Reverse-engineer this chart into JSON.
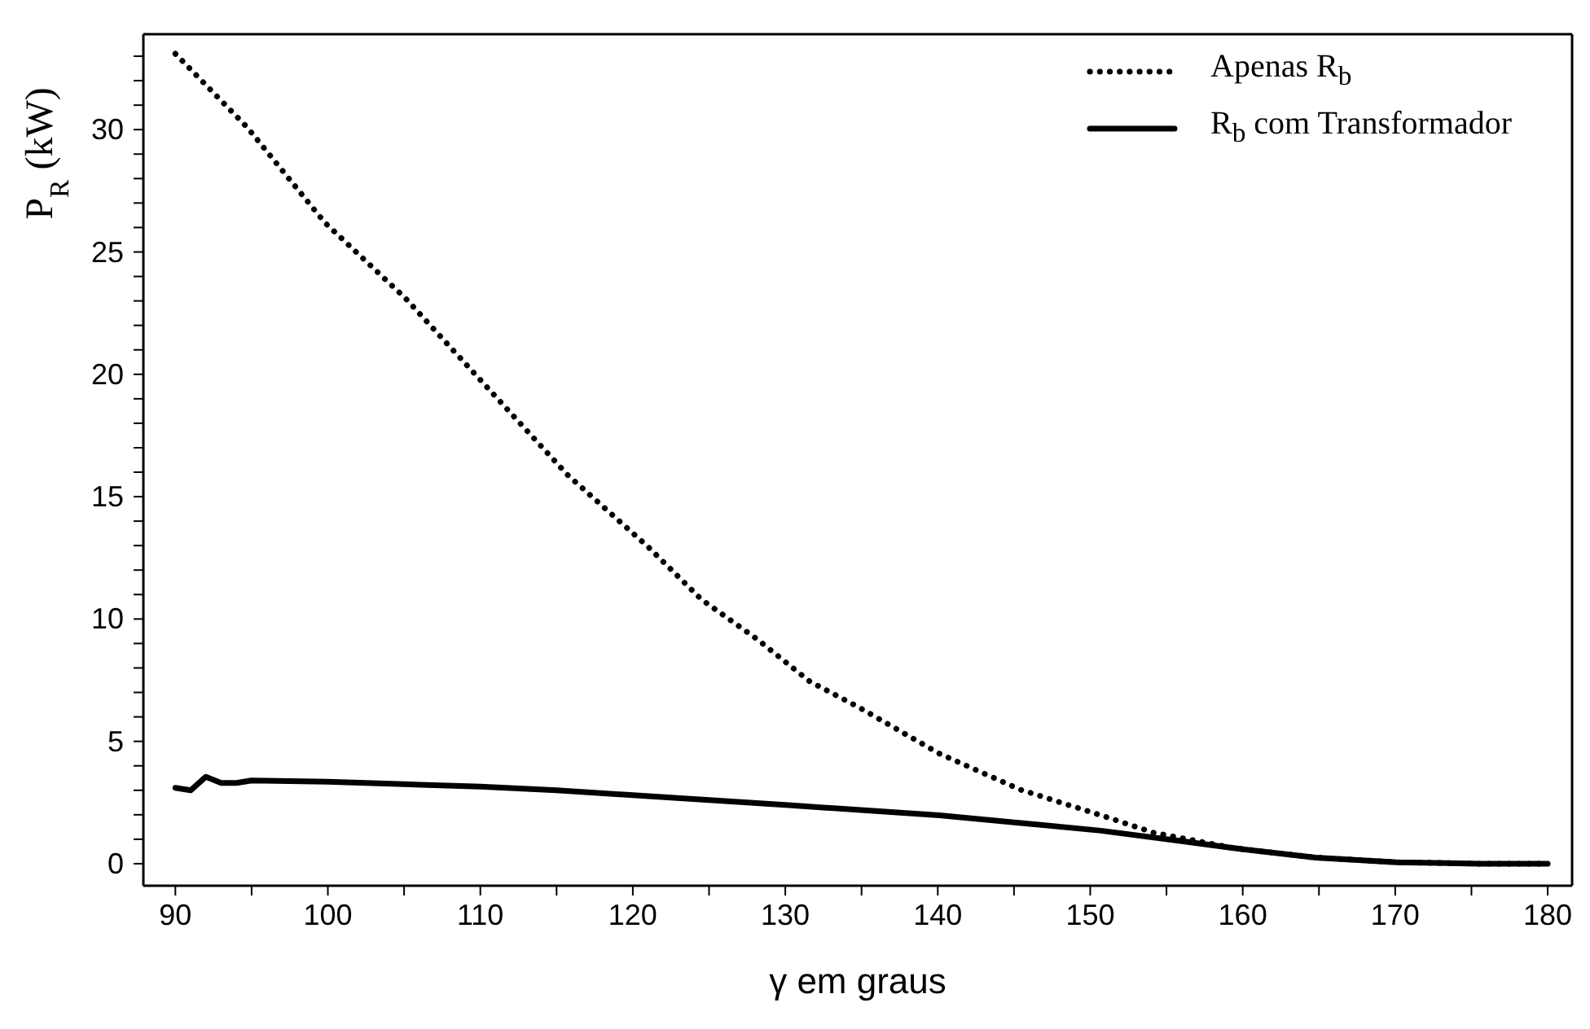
{
  "chart_data": {
    "type": "line",
    "xlabel": "γ em graus",
    "ylabel": "P$_{R}$ (kW)",
    "xlim": [
      87.9,
      181.6
    ],
    "ylim": [
      -0.9,
      33.9
    ],
    "xticks": [
      90,
      {
        "value": 95,
        "label": null
      },
      100,
      {
        "value": 105,
        "label": null
      },
      110,
      {
        "value": 115,
        "label": null
      },
      120,
      {
        "value": 125,
        "label": null
      },
      130,
      {
        "value": 135,
        "label": null
      },
      140,
      {
        "value": 145,
        "label": null
      },
      150,
      {
        "value": 155,
        "label": null
      },
      160,
      {
        "value": 165,
        "label": null
      },
      170,
      {
        "value": 175,
        "label": null
      },
      180
    ],
    "yticks": [
      0,
      {
        "value": 1,
        "label": null
      },
      {
        "value": 2,
        "label": null
      },
      {
        "value": 3,
        "label": null
      },
      {
        "value": 4,
        "label": null
      },
      5,
      {
        "value": 6,
        "label": null
      },
      {
        "value": 7,
        "label": null
      },
      {
        "value": 8,
        "label": null
      },
      {
        "value": 9,
        "label": null
      },
      10,
      {
        "value": 11,
        "label": null
      },
      {
        "value": 12,
        "label": null
      },
      {
        "value": 13,
        "label": null
      },
      {
        "value": 14,
        "label": null
      },
      15,
      {
        "value": 16,
        "label": null
      },
      {
        "value": 17,
        "label": null
      },
      {
        "value": 18,
        "label": null
      },
      {
        "value": 19,
        "label": null
      },
      20,
      {
        "value": 21,
        "label": null
      },
      {
        "value": 22,
        "label": null
      },
      {
        "value": 23,
        "label": null
      },
      {
        "value": 24,
        "label": null
      },
      25,
      {
        "value": 26,
        "label": null
      },
      {
        "value": 27,
        "label": null
      },
      {
        "value": 28,
        "label": null
      },
      {
        "value": 29,
        "label": null
      },
      30,
      {
        "value": 31,
        "label": null
      },
      {
        "value": 32,
        "label": null
      },
      {
        "value": 33,
        "label": null
      }
    ],
    "grid": false,
    "legend": "top right",
    "marker": "none",
    "series": [
      {
        "name": "Apenas R$_{b}$",
        "color": "#000000",
        "line_style": "dotted",
        "x": [
          90,
          94.7,
          99.8,
          105.1,
          110.4,
          115.7,
          121,
          124.5,
          128.1,
          131.6,
          134.8,
          140.1,
          145.4,
          150.7,
          154.2,
          159.5,
          164.8,
          170.1,
          175.5,
          180
        ],
        "values": [
          33.1,
          30.1,
          26.2,
          23.1,
          19.5,
          15.9,
          12.95,
          10.8,
          9.2,
          7.45,
          6.4,
          4.5,
          3.03,
          1.98,
          1.26,
          0.63,
          0.25,
          0.06,
          0,
          0
        ]
      },
      {
        "name": "R$_{b}$ com Transformador",
        "color": "#000000",
        "line_style": "solid",
        "x": [
          90,
          91,
          92,
          93,
          94,
          95,
          100,
          105,
          110,
          115,
          120,
          125,
          130,
          140.1,
          150.7,
          155.9,
          159.5,
          164.8,
          170.1,
          175.5,
          180
        ],
        "values": [
          3.1,
          3.0,
          3.55,
          3.3,
          3.3,
          3.4,
          3.35,
          3.25,
          3.15,
          3.0,
          2.8,
          2.6,
          2.4,
          1.98,
          1.35,
          0.93,
          0.63,
          0.25,
          0.06,
          0,
          0
        ]
      }
    ]
  }
}
